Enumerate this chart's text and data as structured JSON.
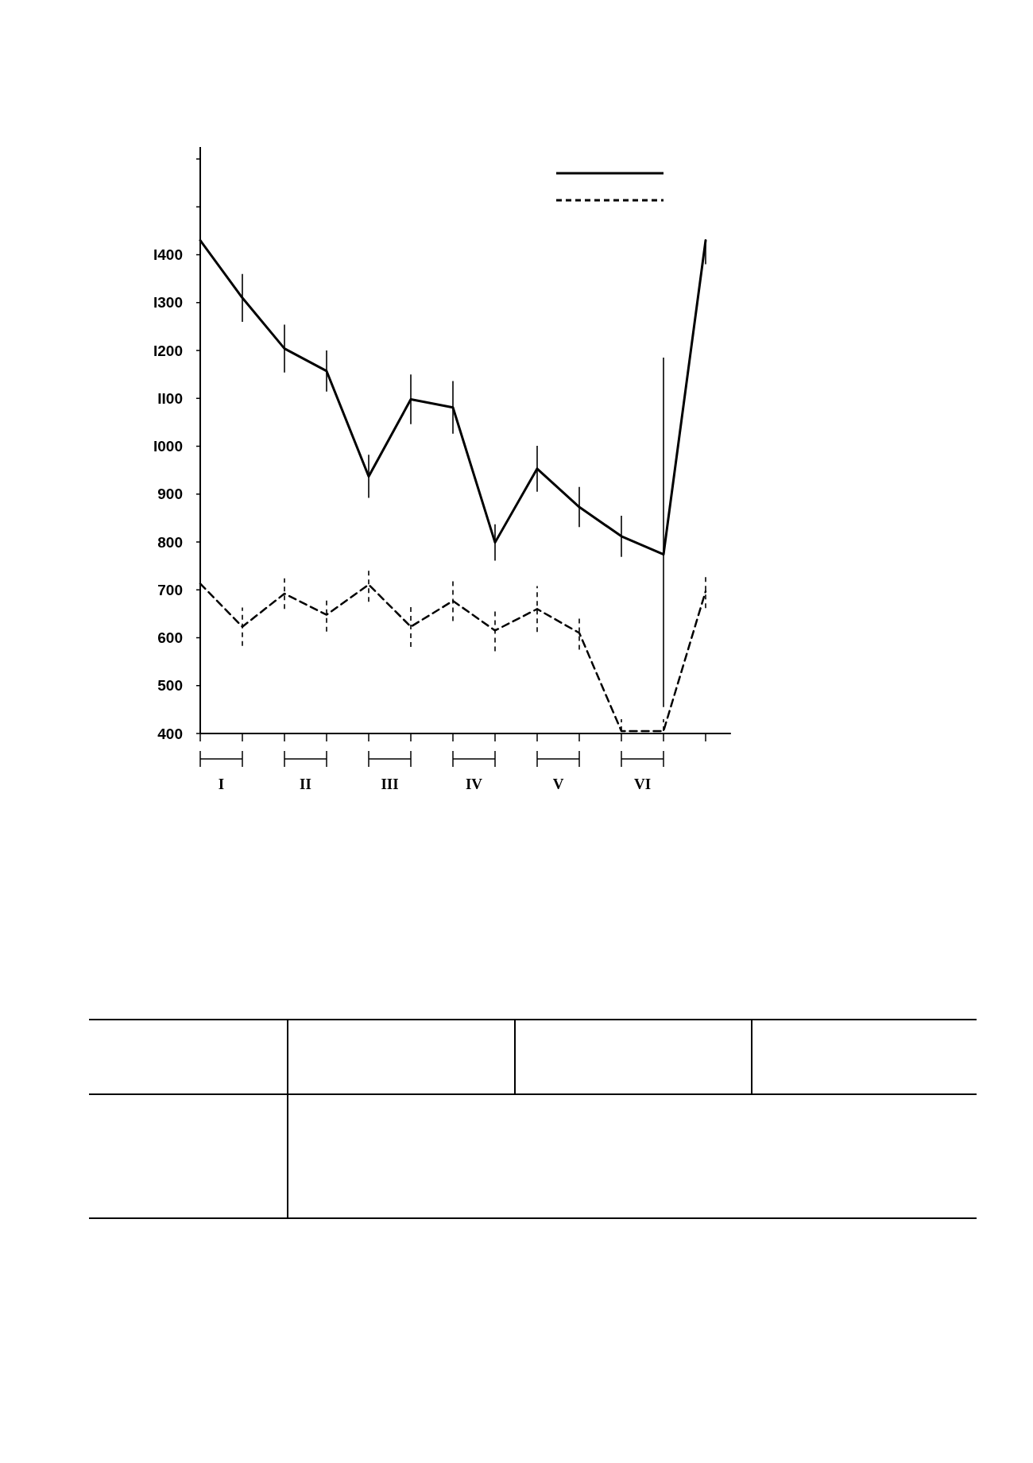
{
  "chart_data": {
    "type": "line",
    "categories": [
      null,
      null,
      null,
      null,
      null,
      null,
      null,
      null,
      null,
      null,
      null,
      null,
      null
    ],
    "ylim": [
      400,
      1625
    ],
    "yticks": [
      400,
      500,
      600,
      700,
      800,
      900,
      {
        "value": 1000,
        "label": "I000"
      },
      {
        "value": 1100,
        "label": "II00"
      },
      {
        "value": 1200,
        "label": "I200"
      },
      {
        "value": 1300,
        "label": "I300"
      },
      {
        "value": 1400,
        "label": "I400"
      },
      {
        "value": 1500,
        "label": null
      },
      {
        "value": 1600,
        "label": null
      }
    ],
    "series": [
      {
        "color": "#000000",
        "line_style": "solid",
        "values": [
          1430,
          1310,
          1204,
          1157,
          937,
          1098,
          1081,
          799,
          953,
          873,
          812,
          774,
          1430
        ],
        "errors": [
          55,
          50,
          50,
          43,
          45,
          52,
          55,
          38,
          48,
          42,
          43,
          [
            455,
            1185
          ],
          [
            1380,
            1430
          ]
        ]
      },
      {
        "color": "#000000",
        "line_style": "dashed",
        "values": [
          713,
          623,
          692,
          648,
          711,
          623,
          677,
          615,
          660,
          610,
          405,
          405,
          697
        ],
        "errors": [
          42,
          40,
          32,
          35,
          36,
          42,
          42,
          43,
          48,
          35,
          [
            405,
            430
          ],
          [
            405,
            430
          ],
          35
        ]
      }
    ],
    "marker": "none",
    "annotations": [
      "I",
      "II",
      "III",
      "IV",
      "V",
      "VI"
    ]
  }
}
